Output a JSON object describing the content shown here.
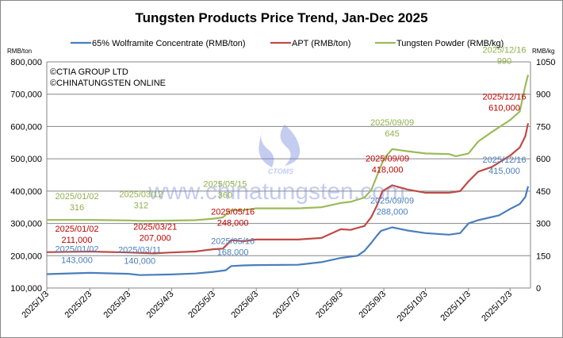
{
  "chart_data": {
    "type": "line",
    "title": "Tungsten Products Price Trend, Jan-Dec 2025",
    "copyright": [
      "©CTIA GROUP LTD",
      "©CHINATUNGSTEN ONLINE"
    ],
    "watermark": {
      "logo": "CTOMS",
      "url": "www.chinatungsten.com"
    },
    "y_left": {
      "unit": "RMB/ton",
      "range": [
        100000,
        800000
      ],
      "ticks": [
        "100,000",
        "200,000",
        "300,000",
        "400,000",
        "500,000",
        "600,000",
        "700,000",
        "800,000"
      ]
    },
    "y_right": {
      "unit": "RMB/kg",
      "range": [
        0,
        1050
      ],
      "ticks": [
        "0",
        "150",
        "300",
        "450",
        "600",
        "750",
        "900",
        "1050"
      ]
    },
    "x_ticks": [
      "2025/1/3",
      "2025/2/3",
      "2025/3/3",
      "2025/4/3",
      "2025/5/3",
      "2025/6/3",
      "2025/7/3",
      "2025/8/3",
      "2025/9/3",
      "2025/10/3",
      "2025/11/3",
      "2025/12/3"
    ],
    "grid": true,
    "legend": "top",
    "series": [
      {
        "name": "65% Wolframite Concentrate (RMB/ton)",
        "axis": "left",
        "color": "#4a7ebb",
        "points": [
          [
            "2025/1/3",
            143000
          ],
          [
            "2025/2/3",
            147000
          ],
          [
            "2025/3/3",
            144000
          ],
          [
            "2025/3/11",
            140000
          ],
          [
            "2025/4/3",
            142000
          ],
          [
            "2025/4/20",
            145000
          ],
          [
            "2025/5/3",
            150000
          ],
          [
            "2025/5/12",
            155000
          ],
          [
            "2025/5/16",
            168000
          ],
          [
            "2025/5/25",
            170000
          ],
          [
            "2025/6/3",
            171000
          ],
          [
            "2025/7/3",
            172000
          ],
          [
            "2025/7/20",
            180000
          ],
          [
            "2025/8/3",
            193000
          ],
          [
            "2025/8/15",
            200000
          ],
          [
            "2025/8/20",
            215000
          ],
          [
            "2025/8/25",
            240000
          ],
          [
            "2025/8/29",
            262000
          ],
          [
            "2025/9/1",
            277000
          ],
          [
            "2025/9/9",
            288000
          ],
          [
            "2025/9/20",
            278000
          ],
          [
            "2025/10/3",
            270000
          ],
          [
            "2025/10/20",
            265000
          ],
          [
            "2025/10/28",
            270000
          ],
          [
            "2025/11/3",
            300000
          ],
          [
            "2025/11/10",
            310000
          ],
          [
            "2025/11/25",
            325000
          ],
          [
            "2025/12/3",
            345000
          ],
          [
            "2025/12/10",
            360000
          ],
          [
            "2025/12/14",
            382000
          ],
          [
            "2025/12/16",
            415000
          ]
        ],
        "labels": [
          [
            "2025/01/02",
            "143,000"
          ],
          [
            "2025/03/11",
            "140,000"
          ],
          [
            "2025/05/16",
            "168,000"
          ],
          [
            "2025/09/09",
            "288,000"
          ],
          [
            "2025/12/16",
            "415,000"
          ]
        ]
      },
      {
        "name": "APT (RMB/ton)",
        "axis": "left",
        "color": "#be4b48",
        "points": [
          [
            "2025/1/3",
            211000
          ],
          [
            "2025/2/3",
            213000
          ],
          [
            "2025/3/3",
            210000
          ],
          [
            "2025/3/21",
            207000
          ],
          [
            "2025/4/3",
            210000
          ],
          [
            "2025/4/20",
            213000
          ],
          [
            "2025/5/3",
            220000
          ],
          [
            "2025/5/10",
            222000
          ],
          [
            "2025/5/16",
            248000
          ],
          [
            "2025/5/25",
            245000
          ],
          [
            "2025/6/3",
            250000
          ],
          [
            "2025/7/3",
            250000
          ],
          [
            "2025/7/20",
            255000
          ],
          [
            "2025/8/3",
            282000
          ],
          [
            "2025/8/10",
            280000
          ],
          [
            "2025/8/20",
            292000
          ],
          [
            "2025/8/25",
            320000
          ],
          [
            "2025/8/29",
            355000
          ],
          [
            "2025/9/2",
            400000
          ],
          [
            "2025/9/9",
            418000
          ],
          [
            "2025/9/20",
            405000
          ],
          [
            "2025/10/3",
            395000
          ],
          [
            "2025/10/20",
            395000
          ],
          [
            "2025/10/28",
            400000
          ],
          [
            "2025/11/3",
            430000
          ],
          [
            "2025/11/10",
            460000
          ],
          [
            "2025/11/20",
            475000
          ],
          [
            "2025/12/3",
            510000
          ],
          [
            "2025/12/10",
            535000
          ],
          [
            "2025/12/14",
            570000
          ],
          [
            "2025/12/16",
            610000
          ]
        ],
        "labels": [
          [
            "2025/01/02",
            "211,000"
          ],
          [
            "2025/03/21",
            "207,000"
          ],
          [
            "2025/05/16",
            "248,000"
          ],
          [
            "2025/09/09",
            "418,000"
          ],
          [
            "2025/12/16",
            "610,000"
          ]
        ]
      },
      {
        "name": "Tungsten Powder (RMB/kg)",
        "axis": "right",
        "color": "#9bbb59",
        "points": [
          [
            "2025/1/3",
            316
          ],
          [
            "2025/2/3",
            316
          ],
          [
            "2025/3/3",
            314
          ],
          [
            "2025/3/12",
            312
          ],
          [
            "2025/4/3",
            313
          ],
          [
            "2025/4/20",
            315
          ],
          [
            "2025/5/3",
            322
          ],
          [
            "2025/5/10",
            328
          ],
          [
            "2025/5/15",
            360
          ],
          [
            "2025/5/25",
            362
          ],
          [
            "2025/6/3",
            370
          ],
          [
            "2025/7/3",
            370
          ],
          [
            "2025/7/20",
            375
          ],
          [
            "2025/8/3",
            395
          ],
          [
            "2025/8/10",
            400
          ],
          [
            "2025/8/20",
            420
          ],
          [
            "2025/8/25",
            455
          ],
          [
            "2025/8/29",
            520
          ],
          [
            "2025/9/3",
            600
          ],
          [
            "2025/9/9",
            645
          ],
          [
            "2025/9/20",
            635
          ],
          [
            "2025/10/3",
            625
          ],
          [
            "2025/10/20",
            622
          ],
          [
            "2025/10/25",
            612
          ],
          [
            "2025/11/3",
            625
          ],
          [
            "2025/11/10",
            680
          ],
          [
            "2025/11/20",
            725
          ],
          [
            "2025/12/3",
            780
          ],
          [
            "2025/12/10",
            820
          ],
          [
            "2025/12/14",
            940
          ],
          [
            "2025/12/16",
            990
          ]
        ],
        "labels": [
          [
            "2025/01/02",
            "316"
          ],
          [
            "2025/03/12",
            "312"
          ],
          [
            "2025/05/15",
            "360"
          ],
          [
            "2025/09/09",
            "645"
          ],
          [
            "2025/12/16",
            "990"
          ]
        ]
      }
    ]
  }
}
